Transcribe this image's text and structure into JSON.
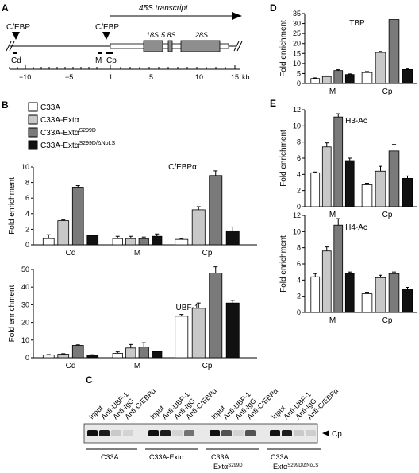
{
  "colors": {
    "C33A": "#ffffff",
    "C33A-Ext": "#c8c8c8",
    "C33A-Ext S299D": "#7a7a7a",
    "C33A-Ext S299D/ΔNoLS": "#111111"
  },
  "panel_a": {
    "letter": "A",
    "transcript_label": "45S transcript",
    "cebp_left": "C/EBP",
    "cebp_right": "C/EBP",
    "rrna_labels": [
      "18S",
      "5.8S",
      "28S"
    ],
    "region_labels": [
      "Cd",
      "M",
      "Cp"
    ],
    "axis_ticks": [
      "−10",
      "−5",
      "1",
      "5",
      "10",
      "15"
    ],
    "axis_unit": "kb"
  },
  "panel_b": {
    "letter": "B",
    "legend": [
      {
        "label": "C33A",
        "sup": ""
      },
      {
        "label": "C33A-Extα",
        "sup": ""
      },
      {
        "label": "C33A-Extα",
        "sup": "S299D"
      },
      {
        "label": "C33A-Extα",
        "sup": "S299D/ΔNoLS"
      }
    ]
  },
  "panel_c": {
    "letter": "C",
    "lane_labels": [
      "Input",
      "Anti-UBF-1",
      "Anti-IgG",
      "Anti-C/EBPα"
    ],
    "band_label": "Cp",
    "group_labels": [
      {
        "line1": "C33A",
        "line2": "",
        "sup": ""
      },
      {
        "line1": "C33A-Extα",
        "line2": "",
        "sup": ""
      },
      {
        "line1": "C33A",
        "line2": "-Extα",
        "sup": "S299D"
      },
      {
        "line1": "C33A",
        "line2": "-Extα",
        "sup": "S299D/ΔNoLS"
      }
    ]
  },
  "panel_d": {
    "letter": "D"
  },
  "panel_e": {
    "letter": "E"
  },
  "chart_data": [
    {
      "id": "cebp",
      "type": "bar",
      "title": "C/EBPα",
      "ylabel": "Fold enrichment",
      "ylim": [
        0,
        10
      ],
      "yticks": [
        0,
        2,
        4,
        6,
        8,
        10
      ],
      "categories": [
        "Cd",
        "M",
        "Cp"
      ],
      "series": [
        {
          "name": "C33A",
          "values": [
            0.8,
            0.8,
            0.7
          ],
          "errors": [
            0.5,
            0.3,
            0.1
          ]
        },
        {
          "name": "C33A-Extα",
          "values": [
            3.1,
            0.8,
            4.5
          ],
          "errors": [
            0.1,
            0.3,
            0.4
          ]
        },
        {
          "name": "C33A-Extα S299D",
          "values": [
            7.4,
            0.8,
            8.9
          ],
          "errors": [
            0.2,
            0.2,
            0.6
          ]
        },
        {
          "name": "C33A-Extα S299D/ΔNoLS",
          "values": [
            1.2,
            1.1,
            1.8
          ],
          "errors": [
            0.0,
            0.3,
            0.5
          ]
        }
      ]
    },
    {
      "id": "ubf",
      "type": "bar",
      "title": "UBF-1",
      "ylabel": "Fold enrichment",
      "ylim": [
        0,
        50
      ],
      "yticks": [
        0,
        10,
        20,
        30,
        40,
        50
      ],
      "categories": [
        "Cd",
        "M",
        "Cp"
      ],
      "series": [
        {
          "name": "C33A",
          "values": [
            1.5,
            2.5,
            23.5
          ],
          "errors": [
            0.3,
            0.8,
            1.0
          ]
        },
        {
          "name": "C33A-Extα",
          "values": [
            2.0,
            5.5,
            28.0
          ],
          "errors": [
            0.3,
            2.0,
            3.0
          ]
        },
        {
          "name": "C33A-Extα S299D",
          "values": [
            7.0,
            6.0,
            48.0
          ],
          "errors": [
            0.3,
            2.5,
            3.5
          ]
        },
        {
          "name": "C33A-Extα S299D/ΔNoLS",
          "values": [
            1.5,
            3.5,
            31.0
          ],
          "errors": [
            0.2,
            0.3,
            1.5
          ]
        }
      ]
    },
    {
      "id": "tbp",
      "type": "bar",
      "title": "TBP",
      "ylabel": "Fold enrichment",
      "ylim": [
        0,
        35
      ],
      "yticks": [
        0,
        5,
        10,
        15,
        20,
        25,
        30,
        35
      ],
      "categories": [
        "M",
        "Cp"
      ],
      "series": [
        {
          "name": "C33A",
          "values": [
            2.5,
            5.5
          ],
          "errors": [
            0.3,
            0.5
          ]
        },
        {
          "name": "C33A-Extα",
          "values": [
            3.5,
            15.5
          ],
          "errors": [
            0.3,
            0.5
          ]
        },
        {
          "name": "C33A-Extα S299D",
          "values": [
            6.5,
            32.0
          ],
          "errors": [
            0.4,
            1.2
          ]
        },
        {
          "name": "C33A-Extα S299D/ΔNoLS",
          "values": [
            4.5,
            7.0
          ],
          "errors": [
            0.3,
            0.3
          ]
        }
      ]
    },
    {
      "id": "h3",
      "type": "bar",
      "title": "H3-Ac",
      "ylabel": "Fold enrichment",
      "ylim": [
        0,
        12
      ],
      "yticks": [
        0,
        2,
        4,
        6,
        8,
        10,
        12
      ],
      "categories": [
        "M",
        "Cp"
      ],
      "series": [
        {
          "name": "C33A",
          "values": [
            4.2,
            2.7
          ],
          "errors": [
            0.1,
            0.2
          ]
        },
        {
          "name": "C33A-Extα",
          "values": [
            7.4,
            4.4
          ],
          "errors": [
            0.5,
            0.6
          ]
        },
        {
          "name": "C33A-Extα S299D",
          "values": [
            11.1,
            6.9
          ],
          "errors": [
            0.4,
            0.8
          ]
        },
        {
          "name": "C33A-Extα S299D/ΔNoLS",
          "values": [
            5.7,
            3.5
          ],
          "errors": [
            0.3,
            0.3
          ]
        }
      ]
    },
    {
      "id": "h4",
      "type": "bar",
      "title": "H4-Ac",
      "ylabel": "Fold enrichment",
      "ylim": [
        0,
        12
      ],
      "yticks": [
        0,
        2,
        4,
        6,
        8,
        10,
        12
      ],
      "categories": [
        "M",
        "Cp"
      ],
      "series": [
        {
          "name": "C33A",
          "values": [
            4.4,
            2.3
          ],
          "errors": [
            0.4,
            0.2
          ]
        },
        {
          "name": "C33A-Extα",
          "values": [
            7.6,
            4.3
          ],
          "errors": [
            0.5,
            0.3
          ]
        },
        {
          "name": "C33A-Extα S299D",
          "values": [
            10.8,
            4.8
          ],
          "errors": [
            0.8,
            0.2
          ]
        },
        {
          "name": "C33A-Extα S299D/ΔNoLS",
          "values": [
            4.8,
            2.9
          ],
          "errors": [
            0.2,
            0.2
          ]
        }
      ]
    }
  ]
}
